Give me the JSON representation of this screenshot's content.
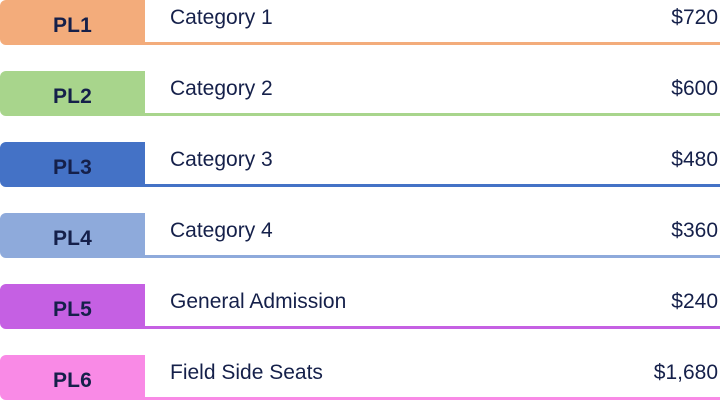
{
  "price_list": {
    "rows": [
      {
        "code": "PL1",
        "name": "Category 1",
        "price": "$720",
        "color": "#f3ac7b"
      },
      {
        "code": "PL2",
        "name": "Category 2",
        "price": "$600",
        "color": "#a8d58c"
      },
      {
        "code": "PL3",
        "name": "Category 3",
        "price": "$480",
        "color": "#4472c6"
      },
      {
        "code": "PL4",
        "name": "Category 4",
        "price": "$360",
        "color": "#8eaadb"
      },
      {
        "code": "PL5",
        "name": "General Admission",
        "price": "$240",
        "color": "#c560e3"
      },
      {
        "code": "PL6",
        "name": "Field Side Seats",
        "price": "$1,680",
        "color": "#f98ae6"
      }
    ]
  }
}
